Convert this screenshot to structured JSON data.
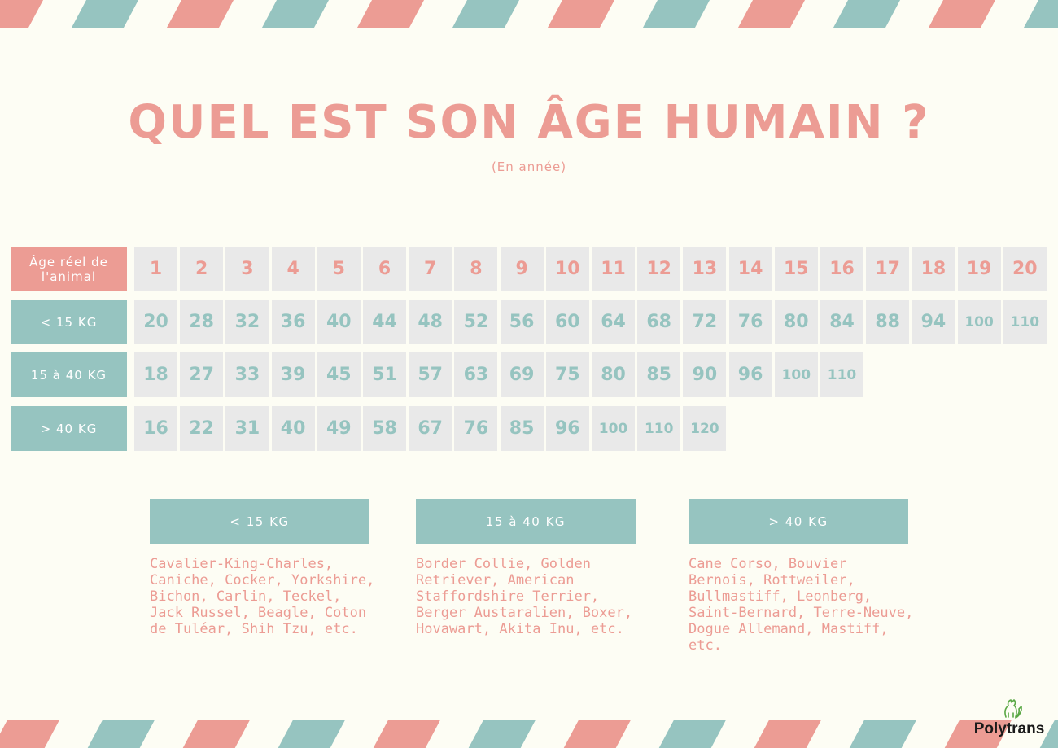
{
  "title": "QUEL EST SON ÂGE HUMAIN ?",
  "subtitle": "(En année)",
  "colors": {
    "pink": "#ec9c94",
    "teal": "#96c4c0",
    "cell": "#e9e9e9",
    "background": "#fdfdf4"
  },
  "table": {
    "header": {
      "label": "Âge réel de l'animal",
      "values": [
        "1",
        "2",
        "3",
        "4",
        "5",
        "6",
        "7",
        "8",
        "9",
        "10",
        "11",
        "12",
        "13",
        "14",
        "15",
        "16",
        "17",
        "18",
        "19",
        "20"
      ]
    },
    "rows": [
      {
        "label": "< 15 KG",
        "values": [
          "20",
          "28",
          "32",
          "36",
          "40",
          "44",
          "48",
          "52",
          "56",
          "60",
          "64",
          "68",
          "72",
          "76",
          "80",
          "84",
          "88",
          "94",
          "100",
          "110"
        ]
      },
      {
        "label": "15 à 40 KG",
        "values": [
          "18",
          "27",
          "33",
          "39",
          "45",
          "51",
          "57",
          "63",
          "69",
          "75",
          "80",
          "85",
          "90",
          "96",
          "100",
          "110"
        ]
      },
      {
        "label": "> 40 KG",
        "values": [
          "16",
          "22",
          "31",
          "40",
          "49",
          "58",
          "67",
          "76",
          "85",
          "96",
          "100",
          "110",
          "120"
        ]
      }
    ]
  },
  "categories": [
    {
      "label": "< 15 KG",
      "breeds": "Cavalier-King-Charles, Caniche, Cocker, Yorkshire, Bichon, Carlin, Teckel, Jack Russel, Beagle, Coton de Tuléar, Shih Tzu, etc."
    },
    {
      "label": "15 à 40 KG",
      "breeds": "Border Collie, Golden Retriever, American Staffordshire Terrier, Berger Austaralien, Boxer, Hovawart, Akita Inu, etc."
    },
    {
      "label": "> 40 KG",
      "breeds": "Cane Corso, Bouvier Bernois, Rottweiler, Bullmastiff, Leonberg, Saint-Bernard, Terre-Neuve, Dogue Allemand, Mastiff, etc."
    }
  ],
  "logo": {
    "text": "Polytrans",
    "icon": "dog-cat-logo-icon"
  }
}
